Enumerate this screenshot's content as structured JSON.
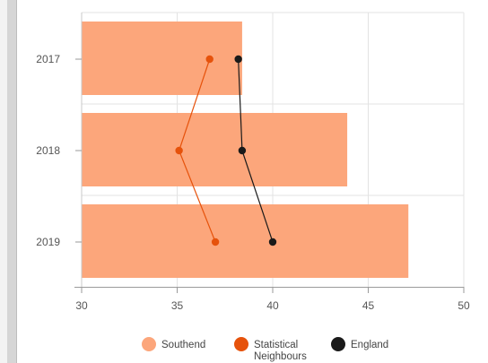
{
  "chart_data": {
    "type": "bar",
    "orientation": "horizontal",
    "categories": [
      "2017",
      "2018",
      "2019"
    ],
    "xlim": [
      30,
      50
    ],
    "x_ticks": [
      30,
      35,
      40,
      45,
      50
    ],
    "grid": true,
    "legend_position": "bottom",
    "series": [
      {
        "name": "Southend",
        "kind": "bar",
        "color": "#fca67b",
        "values": [
          38.4,
          43.9,
          47.1
        ]
      },
      {
        "name": "Statistical Neighbours",
        "kind": "line",
        "color": "#e6520b",
        "values": [
          36.7,
          35.1,
          37.0
        ]
      },
      {
        "name": "England",
        "kind": "line",
        "color": "#1a1a1a",
        "values": [
          38.2,
          38.4,
          40.0
        ]
      }
    ],
    "legend": [
      {
        "label_lines": [
          "Southend"
        ],
        "color": "#fca67b"
      },
      {
        "label_lines": [
          "Statistical",
          "Neighbours"
        ],
        "color": "#e6520b"
      },
      {
        "label_lines": [
          "England"
        ],
        "color": "#1a1a1a"
      }
    ]
  }
}
